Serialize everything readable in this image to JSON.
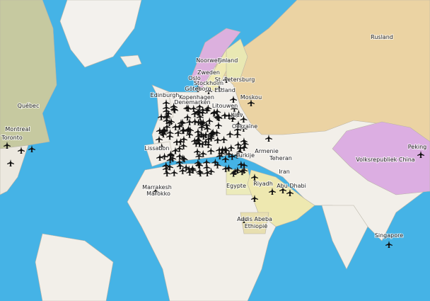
{
  "map": {
    "labels": [
      "Rusland",
      "Noorwegen",
      "Finland",
      "Zweden",
      "Oslo",
      "Stockholm",
      "Göteborg",
      "St. Petersburg",
      "Estland",
      "Moskou",
      "Edinburgh",
      "Kopenhagen",
      "Denemarken",
      "Litouwen",
      "Kiev",
      "Oekraïne",
      "Québec",
      "Montreal",
      "Toronto",
      "Lissabon",
      "Marrakesh",
      "Marokko",
      "Turkije",
      "Armenie",
      "Teheran",
      "Iran",
      "Egypte",
      "Riyadh",
      "Abu Dhabi",
      "Peking",
      "Volksrepubliek China",
      "Addis Abeba",
      "Ethiopië",
      "Singapore"
    ]
  }
}
